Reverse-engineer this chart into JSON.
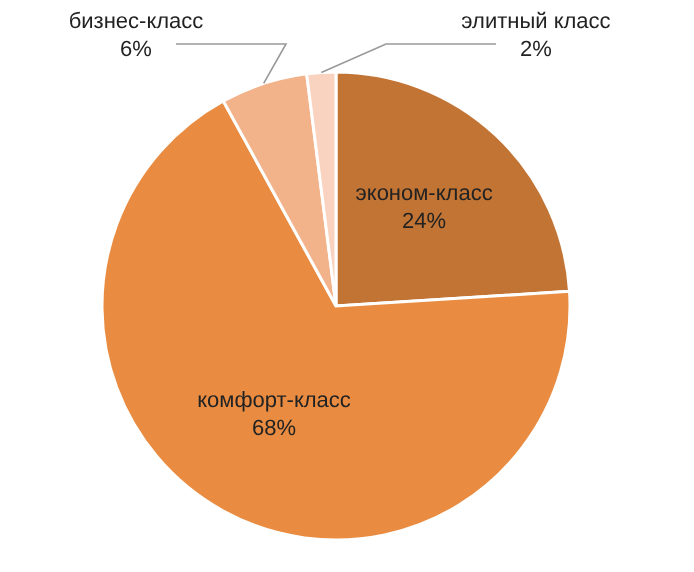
{
  "chart_data": {
    "type": "pie",
    "categories": [
      "эконом-класс",
      "комфорт-класс",
      "бизнес-класс",
      "элитный класс"
    ],
    "values": [
      24,
      68,
      6,
      2
    ],
    "colors": [
      "#c27434",
      "#e98c41",
      "#f2b28a",
      "#f9d3bf"
    ],
    "value_labels": [
      "24%",
      "68%",
      "6%",
      "2%"
    ]
  }
}
